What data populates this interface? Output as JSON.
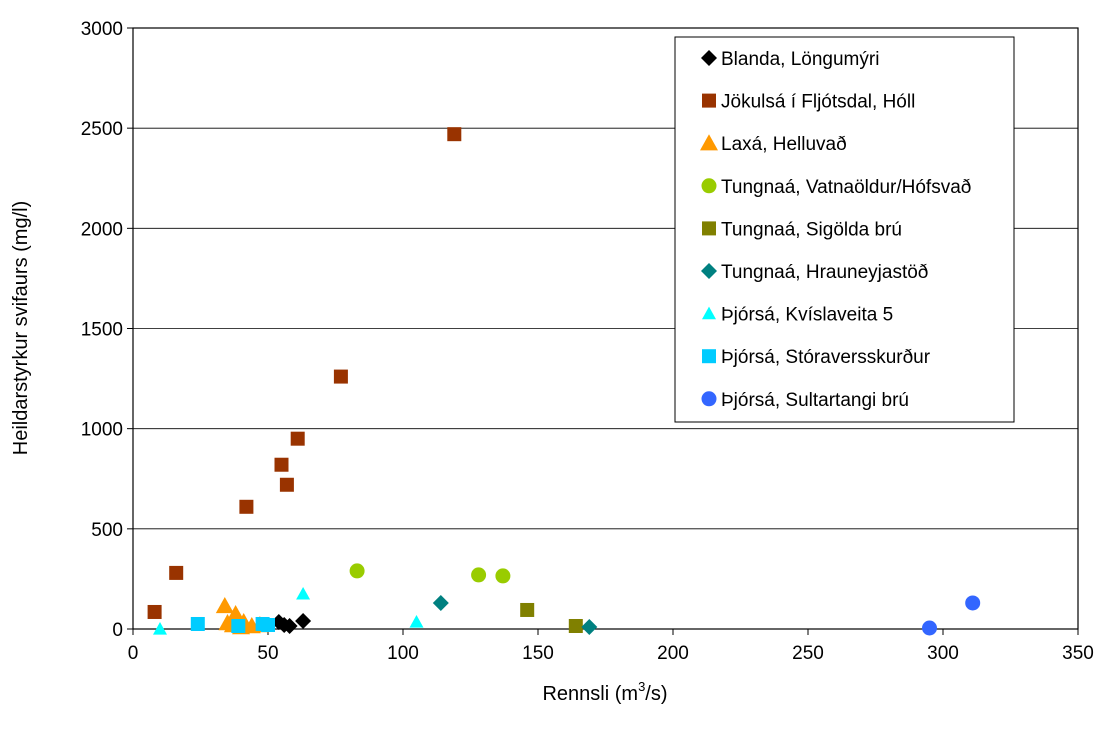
{
  "chart_data": {
    "type": "scatter",
    "title": "",
    "xlabel_main": "Rennsli (m",
    "xlabel_sup": "3",
    "xlabel_tail": "/s)",
    "ylabel": "Heildarstyrkur svifaurs (mg/l)",
    "xlim": [
      0,
      350
    ],
    "ylim": [
      0,
      3000
    ],
    "x_ticks": [
      "0",
      "50",
      "100",
      "150",
      "200",
      "250",
      "300",
      "350"
    ],
    "y_ticks": [
      "0",
      "500",
      "1000",
      "1500",
      "2000",
      "2500",
      "3000"
    ],
    "grid": "horizontal",
    "legend_position": "top-right",
    "series": [
      {
        "name": "Blanda, Löngumýri",
        "marker": "diamond",
        "color": "#000000",
        "points": [
          [
            54,
            35
          ],
          [
            56,
            20
          ],
          [
            58,
            15
          ],
          [
            63,
            40
          ]
        ]
      },
      {
        "name": "Jökulsá í Fljótsdal, Hóll",
        "marker": "square",
        "color": "#993300",
        "points": [
          [
            8,
            85
          ],
          [
            16,
            280
          ],
          [
            42,
            610
          ],
          [
            55,
            820
          ],
          [
            57,
            720
          ],
          [
            61,
            950
          ],
          [
            77,
            1260
          ],
          [
            119,
            2470
          ]
        ]
      },
      {
        "name": "Laxá, Helluvað",
        "marker": "triangle",
        "color": "#ff9900",
        "points": [
          [
            34,
            115
          ],
          [
            35,
            30
          ],
          [
            37,
            20
          ],
          [
            38,
            75
          ],
          [
            40,
            10
          ],
          [
            41,
            35
          ],
          [
            44,
            15
          ],
          [
            47,
            20
          ]
        ]
      },
      {
        "name": "Tungnaá, Vatnaöldur/Hófsvað",
        "marker": "circle",
        "color": "#99cc00",
        "points": [
          [
            83,
            290
          ],
          [
            128,
            270
          ],
          [
            137,
            265
          ]
        ]
      },
      {
        "name": "Tungnaá, Sigölda brú",
        "marker": "square",
        "color": "#808000",
        "points": [
          [
            146,
            95
          ],
          [
            164,
            15
          ]
        ]
      },
      {
        "name": "Tungnaá, Hrauneyjastöð",
        "marker": "diamond",
        "color": "#008080",
        "points": [
          [
            114,
            130
          ],
          [
            169,
            10
          ]
        ]
      },
      {
        "name": "Þjórsá, Kvíslaveita 5",
        "marker": "triangle-small",
        "color": "#00ffff",
        "points": [
          [
            10,
            0
          ],
          [
            63,
            175
          ],
          [
            105,
            35
          ]
        ]
      },
      {
        "name": "Þjórsá, Stóraversskurður",
        "marker": "square",
        "color": "#00ccff",
        "points": [
          [
            24,
            25
          ],
          [
            39,
            15
          ],
          [
            48,
            25
          ],
          [
            50,
            20
          ]
        ]
      },
      {
        "name": "Þjórsá, Sultartangi brú",
        "marker": "circle",
        "color": "#3366ff",
        "points": [
          [
            295,
            5
          ],
          [
            311,
            130
          ]
        ]
      }
    ]
  }
}
